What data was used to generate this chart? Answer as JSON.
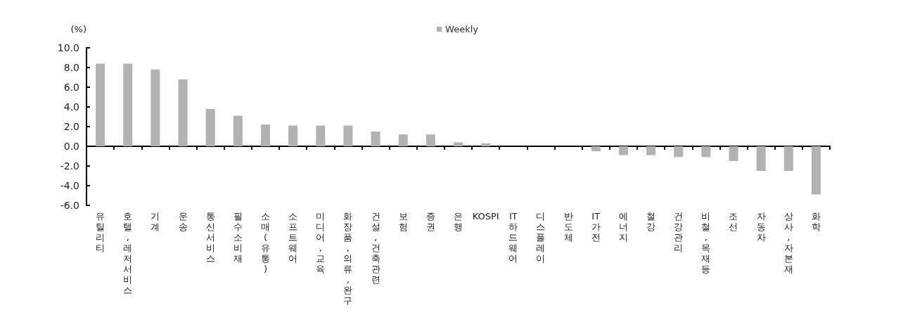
{
  "chart_data": {
    "type": "bar",
    "ylabel": "(%)",
    "categories": [
      "유틸리티",
      "호텔,레저서비스",
      "기계",
      "운송",
      "통신서비스",
      "필수소비재",
      "소매(유통)",
      "소프트웨어",
      "미디어,교육",
      "화장품,의류,완구",
      "건설,건축관련",
      "보험",
      "증권",
      "은행",
      "KOSPI",
      "IT하드웨어",
      "디스플레이",
      "반도체",
      "IT가전",
      "에너지",
      "철강",
      "건강관리",
      "비철,목재등",
      "조선",
      "자동차",
      "상사,자본재",
      "화학"
    ],
    "series": [
      {
        "name": "Weekly",
        "color": "#b2b2b2",
        "values": [
          8.4,
          8.4,
          7.8,
          6.8,
          3.8,
          3.1,
          2.2,
          2.1,
          2.1,
          2.1,
          1.5,
          1.2,
          1.2,
          0.4,
          0.3,
          0,
          0,
          0,
          -0.5,
          -0.9,
          -0.9,
          -1.1,
          -1.1,
          -1.5,
          -2.5,
          -2.5,
          -4.9
        ]
      }
    ],
    "ylim": [
      -6,
      10
    ],
    "yticks": [
      {
        "value": -6,
        "label": "-6.0"
      },
      {
        "value": -4,
        "label": "-4.0"
      },
      {
        "value": -2,
        "label": "-2.0"
      },
      {
        "value": 0,
        "label": "0.0"
      },
      {
        "value": 2,
        "label": "2.0"
      },
      {
        "value": 4,
        "label": "4.0"
      },
      {
        "value": 6,
        "label": "6.0"
      },
      {
        "value": 8,
        "label": "8.0"
      },
      {
        "value": 10,
        "label": "10.0"
      }
    ],
    "legend": "top"
  }
}
